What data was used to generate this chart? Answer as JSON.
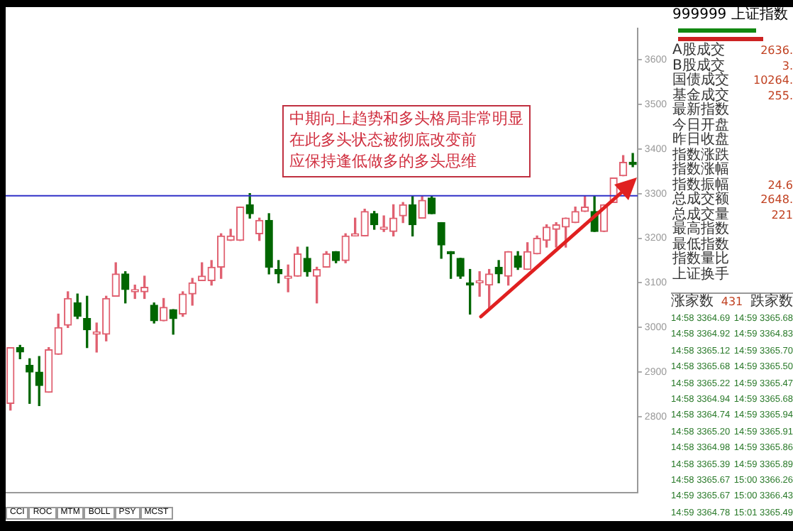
{
  "chart_data": [
    {
      "type": "candlestick",
      "categories": [
        null,
        null,
        null,
        null,
        null,
        null,
        null,
        null,
        null,
        null,
        null,
        null,
        null,
        null,
        null,
        null,
        null,
        null,
        null,
        null,
        null,
        null,
        null,
        null,
        null,
        null,
        null,
        null,
        null,
        null,
        null,
        null,
        null,
        null,
        null,
        null,
        null,
        null,
        null,
        null,
        null,
        null,
        null,
        null,
        null,
        null,
        null,
        null,
        null,
        null,
        null,
        null,
        null,
        null,
        null,
        null,
        null,
        null,
        null,
        null,
        null,
        null,
        null,
        null,
        null,
        null
      ],
      "ohlc": [
        [
          2830,
          2955,
          2815,
          2955
        ],
        [
          2955,
          2960,
          2930,
          2945
        ],
        [
          2915,
          2930,
          2830,
          2900
        ],
        [
          2900,
          2935,
          2825,
          2870
        ],
        [
          2855,
          2955,
          2855,
          2950
        ],
        [
          2940,
          3030,
          2940,
          3000
        ],
        [
          3005,
          3080,
          3000,
          3065
        ],
        [
          3055,
          3075,
          3020,
          3025
        ],
        [
          3020,
          3070,
          2955,
          2995
        ],
        [
          2985,
          3010,
          2945,
          2990
        ],
        [
          2985,
          3070,
          2970,
          3065
        ],
        [
          3070,
          3145,
          3070,
          3120
        ],
        [
          3120,
          3125,
          3055,
          3085
        ],
        [
          3080,
          3095,
          3065,
          3085
        ],
        [
          3080,
          3115,
          3065,
          3090
        ],
        [
          3050,
          3055,
          3010,
          3015
        ],
        [
          3015,
          3065,
          3015,
          3045
        ],
        [
          3040,
          3040,
          2985,
          3020
        ],
        [
          3030,
          3080,
          3025,
          3075
        ],
        [
          3075,
          3110,
          3050,
          3100
        ],
        [
          3105,
          3145,
          3105,
          3115
        ],
        [
          3105,
          3150,
          3095,
          3135
        ],
        [
          3135,
          3210,
          3110,
          3205
        ],
        [
          3195,
          3220,
          3195,
          3205
        ],
        [
          3195,
          3270,
          3195,
          3270
        ],
        [
          3275,
          3300,
          3245,
          3255
        ],
        [
          3210,
          3245,
          3195,
          3240
        ],
        [
          3240,
          3255,
          3120,
          3135
        ],
        [
          3130,
          3150,
          3100,
          3120
        ],
        [
          3110,
          3140,
          3080,
          3115
        ],
        [
          3115,
          3180,
          3115,
          3165
        ],
        [
          3155,
          3180,
          3115,
          3125
        ],
        [
          3115,
          3135,
          3055,
          3130
        ],
        [
          3135,
          3170,
          3135,
          3165
        ],
        [
          3170,
          3170,
          3145,
          3150
        ],
        [
          3150,
          3210,
          3145,
          3205
        ],
        [
          3205,
          3245,
          3205,
          3210
        ],
        [
          3205,
          3265,
          3205,
          3260
        ],
        [
          3255,
          3260,
          3220,
          3230
        ],
        [
          3220,
          3250,
          3215,
          3225
        ],
        [
          3215,
          3275,
          3205,
          3245
        ],
        [
          3250,
          3280,
          3235,
          3275
        ],
        [
          3275,
          3295,
          3205,
          3230
        ],
        [
          3245,
          3295,
          3245,
          3285
        ],
        [
          3290,
          3295,
          3255,
          3255
        ],
        [
          3235,
          3235,
          3155,
          3185
        ],
        [
          3170,
          3170,
          3110,
          3165
        ],
        [
          3155,
          3155,
          3110,
          3115
        ],
        [
          3100,
          3130,
          3030,
          3095
        ],
        [
          3100,
          3125,
          3070,
          3105
        ],
        [
          3095,
          3130,
          3040,
          3120
        ],
        [
          3135,
          3150,
          3100,
          3120
        ],
        [
          3115,
          3170,
          3095,
          3170
        ],
        [
          3160,
          3170,
          3130,
          3135
        ],
        [
          3130,
          3190,
          3130,
          3170
        ],
        [
          3165,
          3205,
          3165,
          3200
        ],
        [
          3195,
          3230,
          3180,
          3225
        ],
        [
          3220,
          3235,
          3180,
          3230
        ],
        [
          3225,
          3245,
          3180,
          3245
        ],
        [
          3235,
          3270,
          3235,
          3260
        ],
        [
          3260,
          3295,
          3260,
          3270
        ],
        [
          3260,
          3295,
          3215,
          3215
        ],
        [
          3215,
          3275,
          3215,
          3275
        ],
        [
          3280,
          3335,
          3280,
          3335
        ],
        [
          3340,
          3385,
          3340,
          3370
        ],
        [
          3370,
          3390,
          3360,
          3365
        ]
      ],
      "colors": [
        "#e06070",
        "#006600",
        "#006600",
        "#006600",
        "#e06070",
        "#e06070",
        "#e06070",
        "#006600",
        "#006600",
        "#e06070",
        "#e06070",
        "#e06070",
        "#006600",
        "#e06070",
        "#e06070",
        "#006600",
        "#e06070",
        "#006600",
        "#e06070",
        "#e06070",
        "#e06070",
        "#e06070",
        "#e06070",
        "#e06070",
        "#e06070",
        "#006600",
        "#e06070",
        "#006600",
        "#006600",
        "#e06070",
        "#e06070",
        "#006600",
        "#e06070",
        "#e06070",
        "#006600",
        "#e06070",
        "#e06070",
        "#e06070",
        "#006600",
        "#e06070",
        "#e06070",
        "#e06070",
        "#006600",
        "#e06070",
        "#006600",
        "#006600",
        "#006600",
        "#006600",
        "#006600",
        "#e06070",
        "#e06070",
        "#006600",
        "#e06070",
        "#006600",
        "#e06070",
        "#e06070",
        "#e06070",
        "#e06070",
        "#e06070",
        "#e06070",
        "#e06070",
        "#006600",
        "#e06070",
        "#e06070",
        "#e06070",
        "#006600"
      ],
      "ylim": [
        2630,
        3670
      ],
      "yticks": [
        2800,
        2900,
        3000,
        3100,
        3200,
        3300,
        3400,
        3500,
        3600
      ],
      "tick_labels": "y",
      "ref_lines": [
        {
          "axis": "y",
          "value": 3295,
          "color": "#3030c8"
        }
      ],
      "annotations": [
        "中期向上趋势和多头格局非常明显",
        "在此多头状态被彻底改变前",
        "应保持逢低做多的多头思维"
      ]
    },
    {
      "type": "other",
      "categories": [
        "CCI",
        "ROC",
        "MTM",
        "BOLL",
        "PSY",
        "MCST"
      ]
    },
    {
      "type": "other",
      "title": "999999 上证指数",
      "categories": [
        "A股成交",
        "B股成交",
        "国债成交",
        "基金成交",
        "最新指数",
        "今日开盘",
        "昨日收盘",
        "指数涨跌",
        "指数涨幅",
        "指数振幅",
        "总成交额",
        "总成交量",
        "最高指数",
        "最低指数",
        "指数量比",
        "上证换手"
      ],
      "value_labels": [
        "2636.",
        "3.",
        "10264.",
        "255.",
        null,
        null,
        null,
        null,
        null,
        "24.6",
        "2648.",
        "221",
        null,
        null,
        null,
        null
      ]
    },
    {
      "type": "other",
      "categories": [
        "涨家数",
        "431",
        "跌家数"
      ],
      "annotations": [
        "14:58 3364.69",
        "14:58 3364.92",
        "14:58 3365.12",
        "14:58 3365.68",
        "14:58 3365.22",
        "14:58 3364.94",
        "14:58 3364.74",
        "14:58 3365.20",
        "14:58 3364.98",
        "14:58 3365.39",
        "14:58 3365.67",
        "14:59 3365.67",
        "14:59 3364.78",
        "14:59 3365.68",
        "14:59 3364.83",
        "14:59 3365.70",
        "14:59 3365.50",
        "14:59 3365.47",
        "14:59 3365.68",
        "14:59 3365.94",
        "14:59 3365.91",
        "14:59 3365.86",
        "14:59 3365.89",
        "15:00 3366.26",
        "15:00 3366.43",
        "15:01 3365.49"
      ]
    }
  ]
}
